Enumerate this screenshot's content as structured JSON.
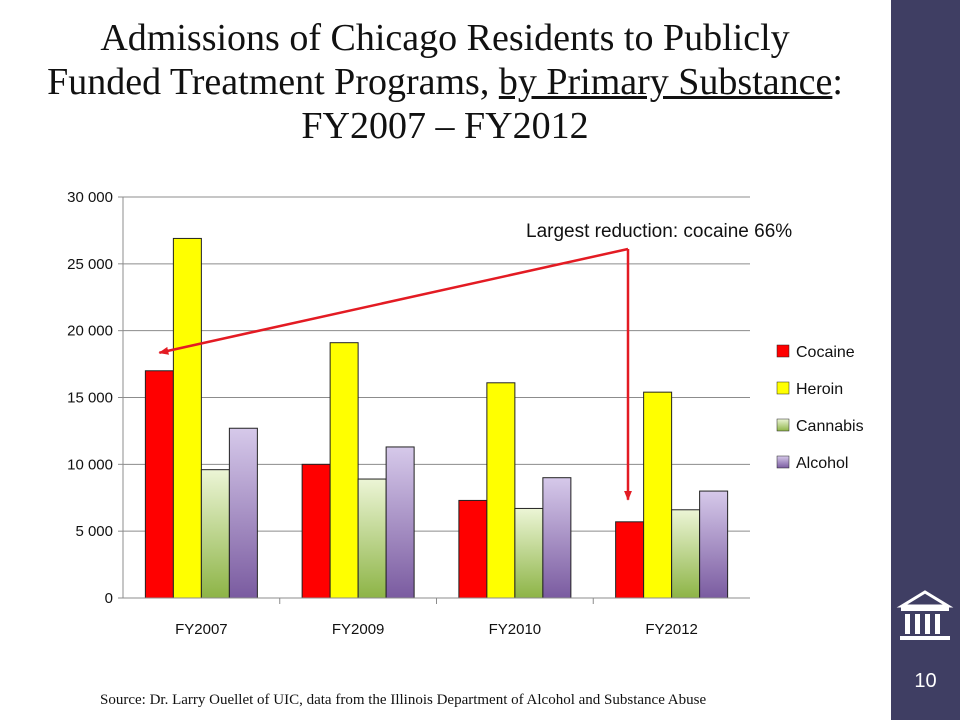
{
  "slide": {
    "title_part1": "Admissions of Chicago Residents to Publicly Funded Treatment Programs, ",
    "title_part2": "by Primary Substance",
    "title_part3": ":  FY2007 – FY2012",
    "source": "Source:  Dr. Larry Ouellet of UIC, data from the Illinois Department of Alcohol and Substance Abuse",
    "page_number": "10",
    "sidebar_color": "#3f3e63"
  },
  "chart_data": {
    "type": "bar",
    "categories": [
      "FY2007",
      "FY2009",
      "FY2010",
      "FY2012"
    ],
    "series": [
      {
        "name": "Cocaine",
        "values": [
          17000,
          10000,
          7300,
          5700
        ],
        "color": "#ff0000"
      },
      {
        "name": "Heroin",
        "values": [
          26900,
          19100,
          16100,
          15400
        ],
        "color": "#ffff00"
      },
      {
        "name": "Cannabis",
        "values": [
          9600,
          8900,
          6700,
          6600
        ],
        "color": "#9bbb59"
      },
      {
        "name": "Alcohol",
        "values": [
          12700,
          11300,
          9000,
          8000
        ],
        "color": "#8064a2"
      }
    ],
    "ylim": [
      0,
      30000
    ],
    "yticks": [
      0,
      5000,
      10000,
      15000,
      20000,
      25000,
      30000
    ],
    "ytick_labels": [
      "0",
      "5 000",
      "10 000",
      "15 000",
      "20 000",
      "25 000",
      "30 000"
    ],
    "grid": true,
    "legend": "right",
    "annotation": "Largest reduction: cocaine 66%",
    "annotation_color": "#e31b23"
  }
}
